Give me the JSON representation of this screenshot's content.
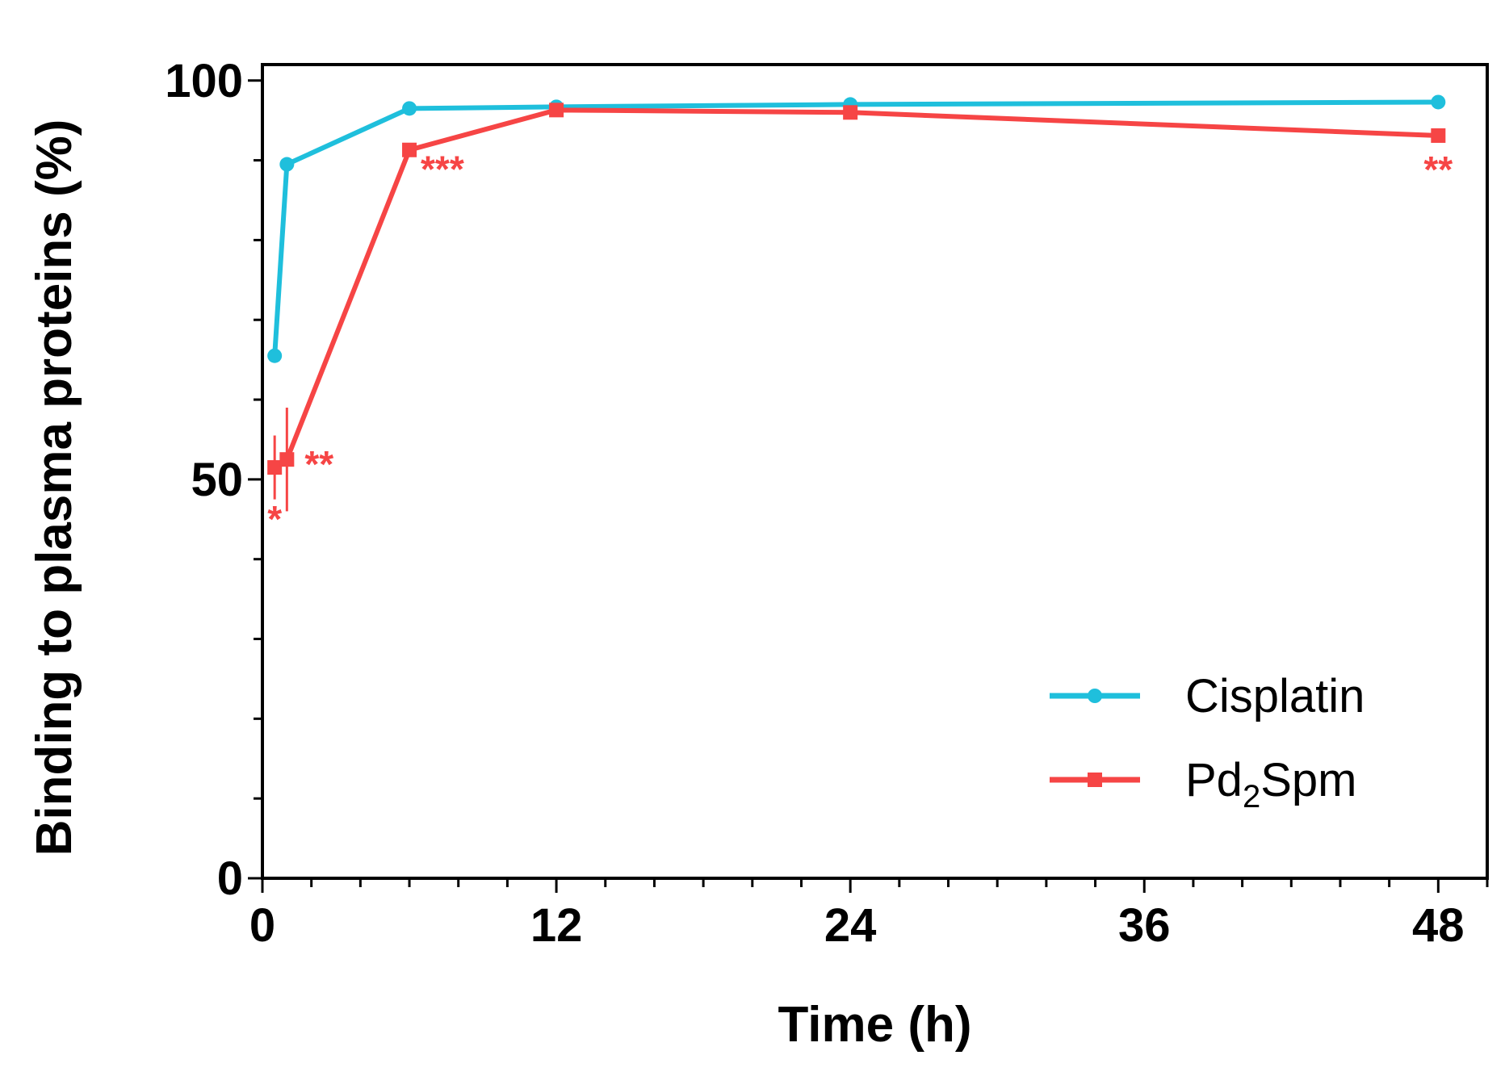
{
  "chart_data": {
    "type": "line",
    "title": "",
    "xlabel": "Time (h)",
    "ylabel": "Binding to plasma proteins (%)",
    "xlim": [
      0,
      50
    ],
    "ylim": [
      0,
      102
    ],
    "xticks": [
      0,
      12,
      24,
      36,
      48
    ],
    "yticks": [
      0,
      50,
      100
    ],
    "x_minor_step": 2,
    "y_minor_step": 10,
    "grid": false,
    "legend_position": "bottom-right",
    "series": [
      {
        "name": "Cisplatin",
        "marker": "circle",
        "color": "#1fbfdc",
        "points": [
          {
            "x": 0.5,
            "y": 65.5
          },
          {
            "x": 1,
            "y": 89.5
          },
          {
            "x": 6,
            "y": 96.5
          },
          {
            "x": 12,
            "y": 96.7
          },
          {
            "x": 24,
            "y": 97.0
          },
          {
            "x": 48,
            "y": 97.3
          }
        ]
      },
      {
        "name": "Pd2Spm",
        "name_base": "Pd",
        "name_sub": "2",
        "name_rest": "Spm",
        "marker": "square",
        "color": "#f64545",
        "points": [
          {
            "x": 0.5,
            "y": 51.5,
            "err": 4.0,
            "sig": "*"
          },
          {
            "x": 1,
            "y": 52.5,
            "err": 6.5,
            "sig": "**"
          },
          {
            "x": 6,
            "y": 91.3,
            "err": 0,
            "sig": "***"
          },
          {
            "x": 12,
            "y": 96.3,
            "err": 0,
            "sig": ""
          },
          {
            "x": 24,
            "y": 96.0,
            "err": 0,
            "sig": ""
          },
          {
            "x": 48,
            "y": 93.1,
            "err": 0,
            "sig": "**"
          }
        ]
      }
    ]
  }
}
